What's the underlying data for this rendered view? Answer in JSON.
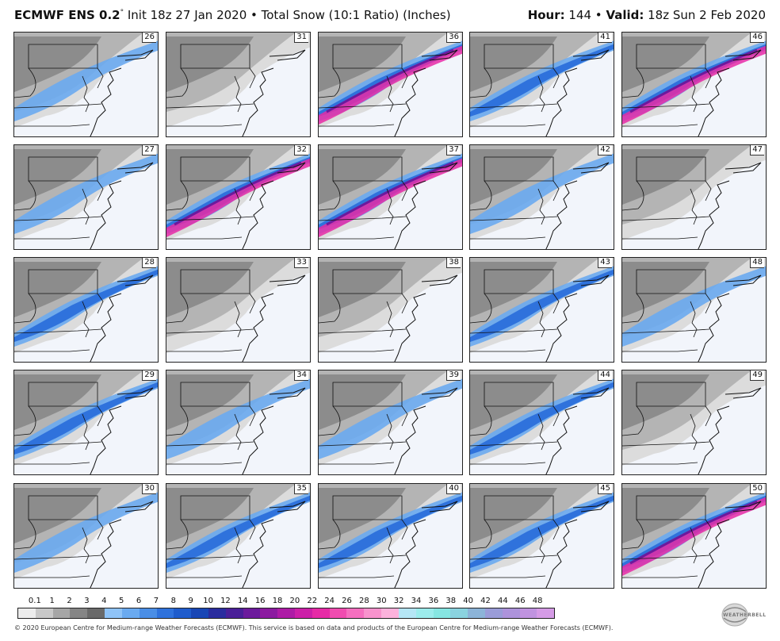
{
  "header": {
    "model": "ECMWF ENS 0.2",
    "degree": "°",
    "description": " Init 18z 27 Jan 2020 • Total Snow (10:1 Ratio) (Inches)",
    "hour_label": "Hour:",
    "hour_value": " 144 • ",
    "valid_label": "Valid:",
    "valid_value": " 18z Sun 2 Feb 2020"
  },
  "members": [
    [
      "26",
      "31",
      "36",
      "41",
      "46"
    ],
    [
      "27",
      "32",
      "37",
      "42",
      "47"
    ],
    [
      "28",
      "33",
      "38",
      "43",
      "48"
    ],
    [
      "29",
      "34",
      "39",
      "44",
      "49"
    ],
    [
      "30",
      "35",
      "40",
      "45",
      "50"
    ]
  ],
  "colorbar": {
    "ticks": [
      "0.1",
      "1",
      "2",
      "3",
      "4",
      "5",
      "6",
      "7",
      "8",
      "9",
      "10",
      "12",
      "14",
      "16",
      "18",
      "20",
      "22",
      "24",
      "26",
      "28",
      "30",
      "32",
      "34",
      "36",
      "38",
      "40",
      "42",
      "44",
      "46",
      "48"
    ],
    "colors": [
      "#ececec",
      "#c8c8c8",
      "#a6a6a6",
      "#858585",
      "#6a6a6a",
      "#8fc3f7",
      "#6aaaf0",
      "#4a8ee6",
      "#2f72dc",
      "#1f5ccc",
      "#1846b5",
      "#2a2c9e",
      "#4a1f98",
      "#6c1a9c",
      "#8c1aa0",
      "#ad1ba6",
      "#cc1fa8",
      "#e62aa6",
      "#f04cb0",
      "#f56fbf",
      "#f893cd",
      "#fcb2dc",
      "#b5e6f5",
      "#9cecec",
      "#86e6e2",
      "#8ad3df",
      "#8cb4d8",
      "#9a9cd8",
      "#ad93db",
      "#c093e0",
      "#d59be6"
    ]
  },
  "footer": "© 2020 European Centre for Medium-range Weather Forecasts (ECMWF). This service is based on data and products of the European Centre for Medium-range Weather Forecasts (ECMWF).",
  "logo": {
    "text": "WEATHERBELL",
    "name": "weatherbell-logo"
  }
}
